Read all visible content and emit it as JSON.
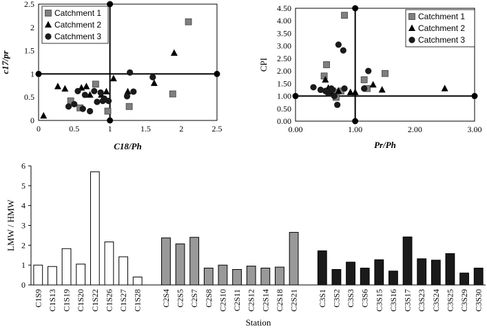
{
  "chart_data": [
    {
      "type": "scatter",
      "title": "",
      "xlabel": "C18/Ph",
      "ylabel": "c17/pr",
      "xlim": [
        0,
        2.5
      ],
      "ylim": [
        0,
        2.5
      ],
      "x_ticks": [
        "0",
        "0.5",
        "1",
        "1.5",
        "2",
        "2.5"
      ],
      "y_ticks": [
        "0",
        "0.5",
        "1",
        "1.5",
        "2",
        "2.5"
      ],
      "ref_x": 1,
      "ref_y": 1,
      "legend_position": "top-left",
      "series": [
        {
          "name": "Catchment 1",
          "marker": "square",
          "points": [
            [
              2.1,
              2.12
            ],
            [
              1.88,
              0.57
            ],
            [
              1.27,
              0.3
            ],
            [
              0.8,
              0.78
            ],
            [
              0.97,
              0.2
            ],
            [
              0.58,
              0.27
            ],
            [
              0.45,
              0.42
            ]
          ]
        },
        {
          "name": "Catchment 2",
          "marker": "triangle",
          "points": [
            [
              0.07,
              0.1
            ],
            [
              0.27,
              0.73
            ],
            [
              0.37,
              0.68
            ],
            [
              0.6,
              0.7
            ],
            [
              0.67,
              0.73
            ],
            [
              0.72,
              0.55
            ],
            [
              0.88,
              0.55
            ],
            [
              0.95,
              0.62
            ],
            [
              1.05,
              0.9
            ],
            [
              1.25,
              0.62
            ],
            [
              1.62,
              0.8
            ],
            [
              1.9,
              1.45
            ]
          ]
        },
        {
          "name": "Catchment 3",
          "marker": "circle",
          "points": [
            [
              0.42,
              0.3
            ],
            [
              0.5,
              0.35
            ],
            [
              0.55,
              0.63
            ],
            [
              0.62,
              0.25
            ],
            [
              0.65,
              0.55
            ],
            [
              0.72,
              0.2
            ],
            [
              0.78,
              0.63
            ],
            [
              0.82,
              0.4
            ],
            [
              0.87,
              0.6
            ],
            [
              0.9,
              0.42
            ],
            [
              0.92,
              0.47
            ],
            [
              0.98,
              0.42
            ],
            [
              1.24,
              0.52
            ],
            [
              1.28,
              1.03
            ],
            [
              1.33,
              0.62
            ],
            [
              1.6,
              0.93
            ]
          ]
        }
      ]
    },
    {
      "type": "scatter",
      "title": "",
      "xlabel": "Pr/Ph",
      "ylabel": "CPI",
      "xlim": [
        0,
        3
      ],
      "ylim": [
        0,
        4.5
      ],
      "x_ticks": [
        "0.00",
        "1.00",
        "2.00",
        "3.00"
      ],
      "y_ticks": [
        "0.00",
        "0.50",
        "1.00",
        "1.50",
        "2.00",
        "2.50",
        "3.00",
        "3.50",
        "4.00",
        "4.50"
      ],
      "ref_x": 1,
      "ref_y": 1,
      "legend_position": "top-right",
      "series": [
        {
          "name": "Catchment 1",
          "marker": "square",
          "points": [
            [
              0.48,
              1.8
            ],
            [
              0.52,
              2.25
            ],
            [
              0.55,
              1.2
            ],
            [
              0.62,
              1.2
            ],
            [
              0.65,
              1.15
            ],
            [
              0.68,
              0.95
            ],
            [
              0.76,
              1.2
            ],
            [
              0.82,
              4.22
            ],
            [
              1.15,
              1.65
            ],
            [
              1.2,
              1.3
            ],
            [
              1.5,
              1.9
            ]
          ]
        },
        {
          "name": "Catchment 2",
          "marker": "triangle",
          "points": [
            [
              0.5,
              1.65
            ],
            [
              0.55,
              1.32
            ],
            [
              0.6,
              1.15
            ],
            [
              0.72,
              1.2
            ],
            [
              0.92,
              1.15
            ],
            [
              1.0,
              1.15
            ],
            [
              1.3,
              1.45
            ],
            [
              1.45,
              1.25
            ],
            [
              2.5,
              1.3
            ]
          ]
        },
        {
          "name": "Catchment 3",
          "marker": "circle",
          "points": [
            [
              0.3,
              1.35
            ],
            [
              0.42,
              1.25
            ],
            [
              0.5,
              1.2
            ],
            [
              0.55,
              1.1
            ],
            [
              0.6,
              1.3
            ],
            [
              0.62,
              1.25
            ],
            [
              0.65,
              1.0
            ],
            [
              0.7,
              0.65
            ],
            [
              0.72,
              3.05
            ],
            [
              0.8,
              2.82
            ],
            [
              0.82,
              1.3
            ],
            [
              1.15,
              1.3
            ],
            [
              1.22,
              2.0
            ]
          ]
        }
      ]
    },
    {
      "type": "bar",
      "title": "",
      "xlabel": "Station",
      "ylabel": "LMW / HMW",
      "ylim": [
        0,
        6
      ],
      "y_ticks": [
        "0",
        "1",
        "2",
        "3",
        "4",
        "5",
        "6"
      ],
      "groups": [
        {
          "name": "Catchment 1",
          "color": "#ffffff",
          "categories": [
            "C1S9",
            "C1S13",
            "C1S19",
            "C1S20",
            "C1S22",
            "C1S26",
            "C1S27",
            "C1S28"
          ],
          "values": [
            1.0,
            0.93,
            1.83,
            1.05,
            5.7,
            2.17,
            1.42,
            0.4
          ]
        },
        {
          "name": "Catchment 2",
          "color": "#999999",
          "categories": [
            "C2S4",
            "C2S5",
            "C2S7",
            "C2S8",
            "C2S10",
            "C2S11",
            "C2S12",
            "C2S14",
            "C2S18",
            "C2S21"
          ],
          "values": [
            2.37,
            2.07,
            2.4,
            0.85,
            1.0,
            0.78,
            0.95,
            0.85,
            0.9,
            2.65
          ]
        },
        {
          "name": "Catchment 3",
          "color": "#1a1a1a",
          "categories": [
            "C3S1",
            "C3S2",
            "C3S3",
            "C3S6",
            "C3S15",
            "C3S16",
            "C3S17",
            "C3S23",
            "C3S24",
            "C3S25",
            "C3S29",
            "C3S30"
          ],
          "values": [
            1.72,
            0.78,
            1.15,
            0.85,
            1.27,
            0.7,
            2.42,
            1.32,
            1.25,
            1.58,
            0.6,
            0.85
          ]
        }
      ]
    }
  ]
}
